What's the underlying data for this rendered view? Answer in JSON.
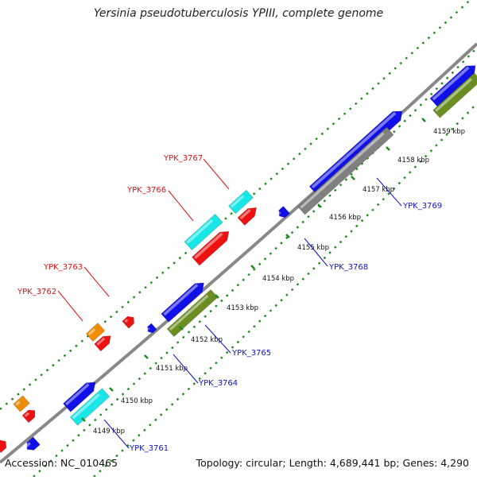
{
  "title": "Yersinia pseudotuberculosis YPIII, complete genome",
  "footer": {
    "accession": "Accession: NC_010465",
    "summary": "Topology: circular; Length: 4,689,441 bp; Genes: 4,290"
  },
  "colors": {
    "backbone": "#888888",
    "dots": "#1a8a1a",
    "ticks": "#1a8a1a",
    "strand_label_top": "#dd1111",
    "strand_label_bottom": "#1111cc",
    "blue": "#1010e8",
    "green": "#6b8e23",
    "gray": "#808080",
    "cyan": "#19e6e6",
    "red": "#ee1111",
    "orange": "#f08c00"
  },
  "kbp_labels": [
    "4149 kbp",
    "4150 kbp",
    "4151 kbp",
    "4152 kbp",
    "4153 kbp",
    "4154 kbp",
    "4155 kbp",
    "4156 kbp",
    "4157 kbp",
    "4158 kbp",
    "4159 kbp"
  ],
  "gene_labels_top": [
    "YPK_3762",
    "YPK_3763",
    "YPK_3766",
    "YPK_3767"
  ],
  "gene_labels_bottom": [
    "YPK_3761",
    "YPK_3764",
    "YPK_3765",
    "YPK_3768",
    "YPK_3769"
  ]
}
